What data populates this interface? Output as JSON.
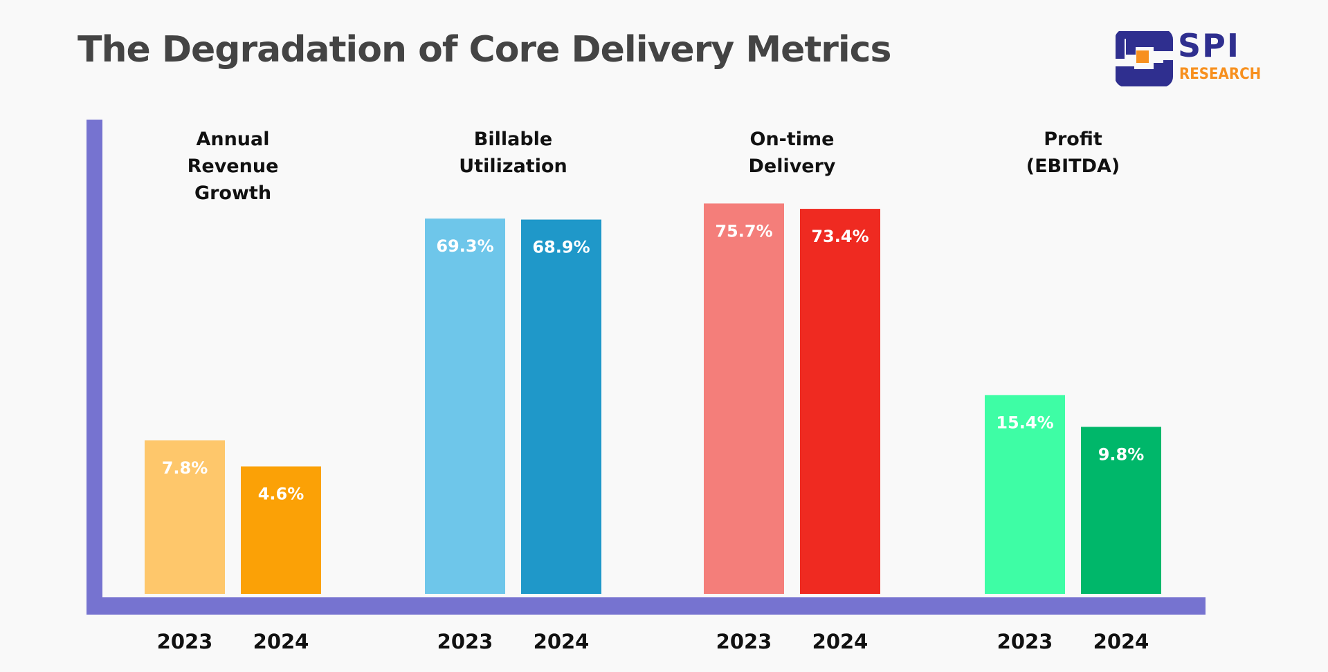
{
  "title": "The Degradation of Core Delivery Metrics",
  "logo": {
    "text": "SPI",
    "subtext": "RESEARCH",
    "colors": {
      "primary": "#2f2f8f",
      "accent": "#f7901e"
    }
  },
  "chart_data": {
    "type": "bar",
    "title": "The Degradation of Core Delivery Metrics",
    "categories": [
      "Annual\nRevenue\nGrowth",
      "Billable\nUtilization",
      "On-time\nDelivery",
      "Profit\n(EBITDA)"
    ],
    "category_labels": [
      [
        "Annual",
        "Revenue",
        "Growth"
      ],
      [
        "Billable",
        "Utilization"
      ],
      [
        "On-time",
        "Delivery"
      ],
      [
        "Profit",
        "(EBITDA)"
      ]
    ],
    "years": [
      "2023",
      "2024"
    ],
    "series": [
      {
        "name": "2023",
        "values": [
          7.8,
          69.3,
          75.7,
          15.4
        ],
        "labels": [
          "7.8%",
          "69.3%",
          "75.7%",
          "15.4%"
        ]
      },
      {
        "name": "2024",
        "values": [
          4.6,
          68.9,
          73.4,
          9.8
        ],
        "labels": [
          "4.6%",
          "68.9%",
          "73.4%",
          "9.8%"
        ]
      }
    ],
    "colors": [
      [
        "#fec76b",
        "#fba106"
      ],
      [
        "#6ec6ea",
        "#1f98c9"
      ],
      [
        "#f47e7a",
        "#ef2a21"
      ],
      [
        "#3efda5",
        "#00b76a"
      ]
    ],
    "axis_color": "#7673d0",
    "unit": "%",
    "grid": false,
    "legend": "none"
  }
}
